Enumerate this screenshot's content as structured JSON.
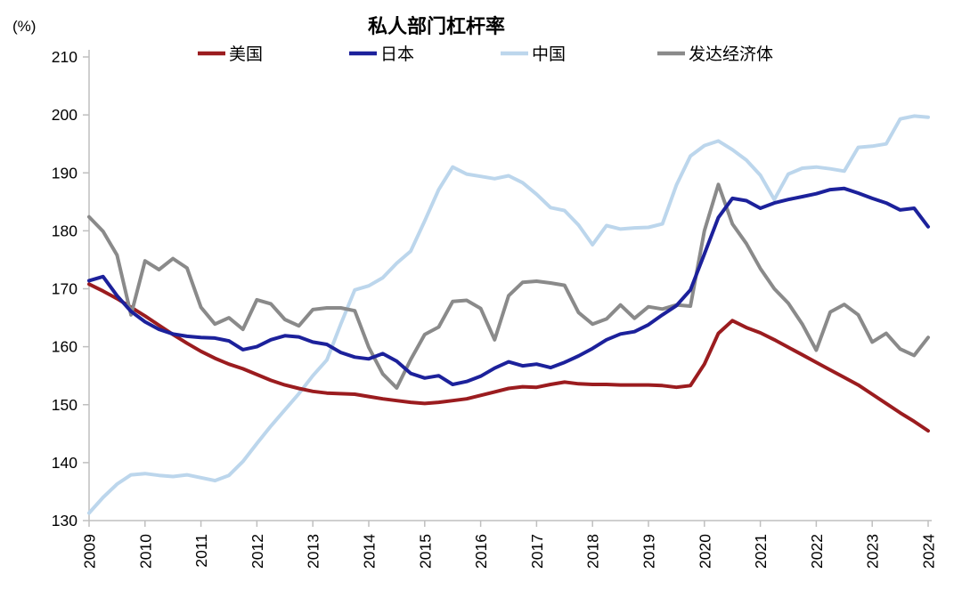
{
  "title": "私人部门杠杆率",
  "y_axis_unit_label": "(%)",
  "legend": [
    "美国",
    "日本",
    "中国",
    "发达经济体"
  ],
  "colors": {
    "us": "#9B1C1F",
    "japan": "#1C219B",
    "china": "#BCD6EC",
    "developed": "#8A8A8A",
    "axis": "#BFBFBF",
    "tick_text": "#000000"
  },
  "chart_data": {
    "type": "line",
    "title": "私人部门杠杆率",
    "xlabel": "",
    "ylabel": "(%)",
    "x_start_year": 2009,
    "x_step_years": 0.25,
    "n_points": 61,
    "x_tick_labels": [
      "2009",
      "2010",
      "2011",
      "2012",
      "2013",
      "2014",
      "2015",
      "2016",
      "2017",
      "2018",
      "2019",
      "2020",
      "2021",
      "2022",
      "2023",
      "2024"
    ],
    "ylim": [
      130,
      210
    ],
    "yticks": [
      130,
      140,
      150,
      160,
      170,
      180,
      190,
      200,
      210
    ],
    "grid": false,
    "legend_position": "top",
    "series": [
      {
        "name": "美国",
        "color": "#9B1C1F",
        "values": [
          170.8,
          169.6,
          168.3,
          166.8,
          165.3,
          163.7,
          162.1,
          160.6,
          159.2,
          158.0,
          157.0,
          156.2,
          155.2,
          154.2,
          153.4,
          152.8,
          152.3,
          152.0,
          151.9,
          151.8,
          151.4,
          151.0,
          150.7,
          150.4,
          150.2,
          150.4,
          150.7,
          151.0,
          151.6,
          152.2,
          152.8,
          153.1,
          153.0,
          153.5,
          153.9,
          153.6,
          153.5,
          153.5,
          153.4,
          153.4,
          153.4,
          153.3,
          153.0,
          153.3,
          157.0,
          162.3,
          164.5,
          163.3,
          162.4,
          161.2,
          159.9,
          158.6,
          157.3,
          156.0,
          154.7,
          153.4,
          151.8,
          150.2,
          148.6,
          147.1,
          145.5
        ]
      },
      {
        "name": "日本",
        "color": "#1C219B",
        "values": [
          171.4,
          172.1,
          168.8,
          166.1,
          164.3,
          163.0,
          162.2,
          161.8,
          161.6,
          161.5,
          161.0,
          159.5,
          160.0,
          161.2,
          161.9,
          161.7,
          160.8,
          160.4,
          159.0,
          158.2,
          157.9,
          158.8,
          157.5,
          155.4,
          154.6,
          155.0,
          153.5,
          154.0,
          154.9,
          156.3,
          157.4,
          156.7,
          157.0,
          156.4,
          157.3,
          158.4,
          159.7,
          161.2,
          162.2,
          162.6,
          163.8,
          165.5,
          167.1,
          169.8,
          176.0,
          182.3,
          185.6,
          185.2,
          183.9,
          184.8,
          185.4,
          185.9,
          186.4,
          187.1,
          187.3,
          186.5,
          185.6,
          184.8,
          183.6,
          183.9,
          180.7
        ]
      },
      {
        "name": "中国",
        "color": "#BCD6EC",
        "values": [
          131.3,
          134.0,
          136.3,
          137.9,
          138.1,
          137.8,
          137.6,
          137.9,
          137.4,
          136.9,
          137.8,
          140.2,
          143.3,
          146.3,
          149.1,
          151.9,
          155.0,
          157.7,
          163.9,
          169.8,
          170.5,
          171.9,
          174.4,
          176.5,
          181.7,
          187.1,
          191.0,
          189.8,
          189.4,
          189.0,
          189.5,
          188.3,
          186.3,
          184.0,
          183.5,
          181.0,
          177.6,
          180.9,
          180.3,
          180.5,
          180.6,
          181.2,
          187.9,
          192.9,
          194.7,
          195.5,
          194.0,
          192.2,
          189.6,
          185.4,
          189.8,
          190.8,
          191.0,
          190.7,
          190.3,
          194.4,
          194.6,
          195.0,
          199.3,
          199.8,
          199.6
        ]
      },
      {
        "name": "发达经济体",
        "color": "#8A8A8A",
        "values": [
          182.4,
          179.9,
          175.8,
          165.5,
          174.8,
          173.3,
          175.2,
          173.6,
          166.8,
          163.9,
          165.0,
          163.0,
          168.1,
          167.4,
          164.7,
          163.6,
          166.4,
          166.7,
          166.7,
          166.2,
          159.9,
          155.3,
          152.9,
          157.8,
          162.1,
          163.4,
          167.8,
          168.0,
          166.6,
          161.2,
          168.8,
          171.1,
          171.3,
          171.0,
          170.6,
          165.9,
          163.9,
          164.8,
          167.2,
          164.9,
          166.9,
          166.5,
          167.2,
          167.0,
          180.0,
          188.0,
          181.2,
          177.8,
          173.5,
          170.0,
          167.5,
          163.9,
          159.4,
          166.0,
          167.3,
          165.5,
          160.8,
          162.3,
          159.6,
          158.5,
          161.6
        ]
      }
    ]
  }
}
